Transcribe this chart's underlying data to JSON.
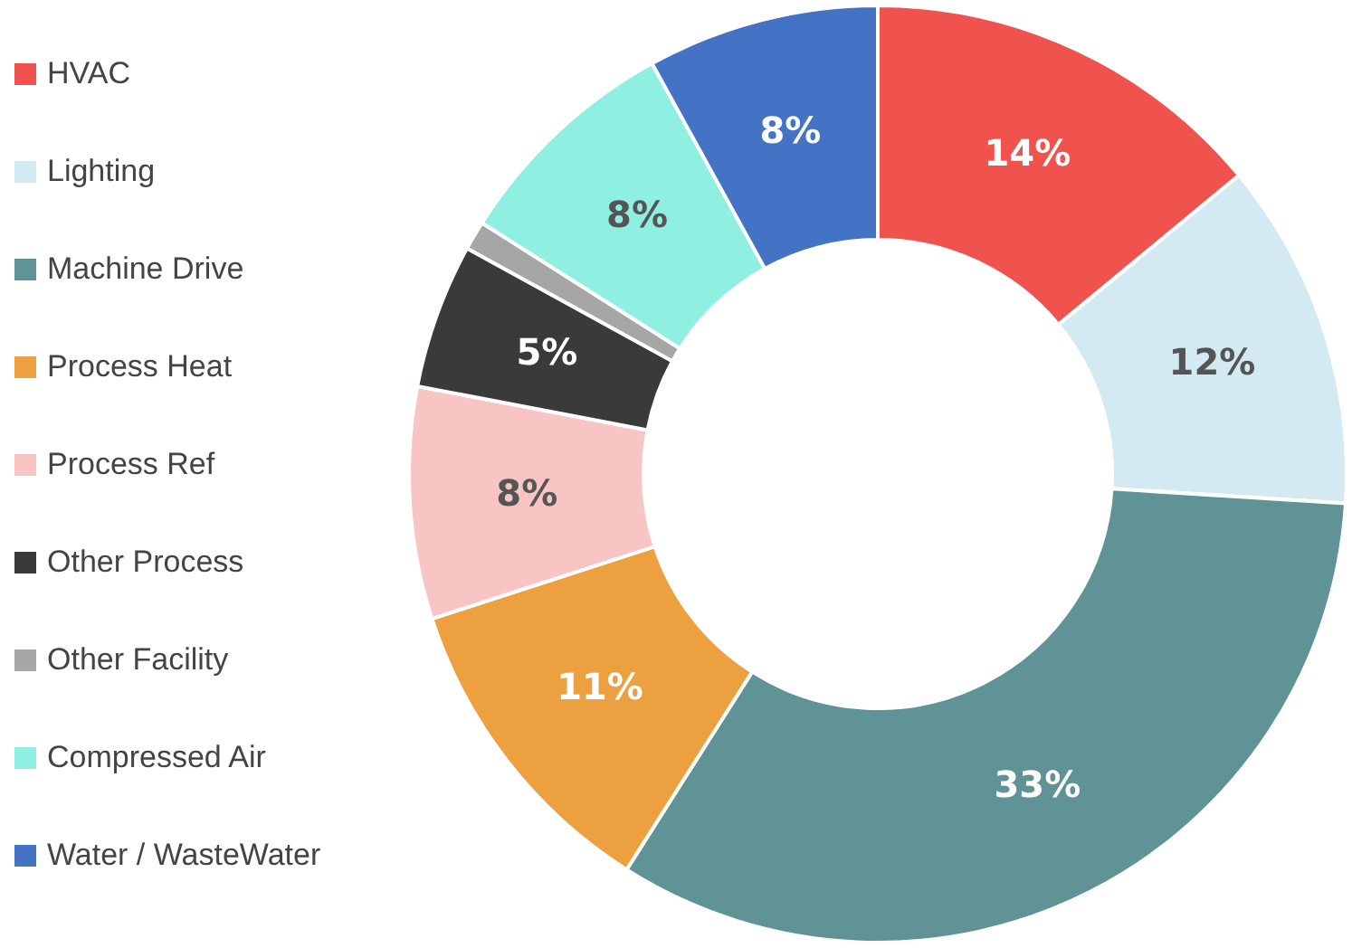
{
  "chart_data": {
    "type": "donut",
    "categories": [
      "HVAC",
      "Lighting",
      "Machine Drive",
      "Process Heat",
      "Process Ref",
      "Other Process",
      "Other Facility",
      "Compressed Air",
      "Water / WasteWater"
    ],
    "values": [
      14,
      12,
      33,
      11,
      8,
      5,
      1,
      8,
      8
    ],
    "value_labels": [
      "14%",
      "12%",
      "33%",
      "11%",
      "8%",
      "5%",
      null,
      "8%",
      "8%"
    ],
    "colors": [
      "#f0524d",
      "#d4eaf2",
      "#5f9396",
      "#eda040",
      "#f9c4c4",
      "#3a3a3a",
      "#a6a6a6",
      "#8ff0e2",
      "#4472c4"
    ],
    "legend": "left"
  }
}
